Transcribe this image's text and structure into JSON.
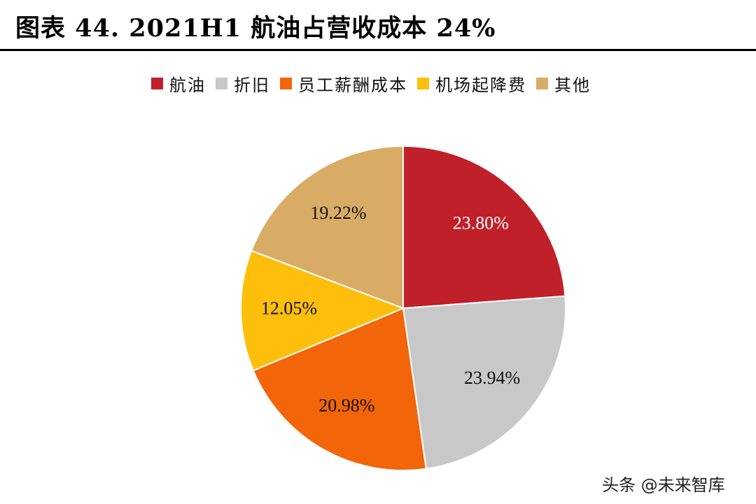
{
  "chart_data": {
    "type": "pie",
    "title": "图表 44. 2021H1 航油占营收成本 24%",
    "legend_position": "top",
    "start": "12 o'clock",
    "direction": "clockwise",
    "slices": [
      {
        "name": "航油",
        "value": 23.8,
        "label": "23.80%",
        "color": "#C0202A",
        "label_color": "#ffffff"
      },
      {
        "name": "折旧",
        "value": 23.94,
        "label": "23.94%",
        "color": "#C8C8C8",
        "label_color": "#111111"
      },
      {
        "name": "员工薪酬成本",
        "value": 20.98,
        "label": "20.98%",
        "color": "#F36509",
        "label_color": "#111111"
      },
      {
        "name": "机场起降费",
        "value": 12.05,
        "label": "12.05%",
        "color": "#FEBE0C",
        "label_color": "#111111"
      },
      {
        "name": "其他",
        "value": 19.22,
        "label": "19.22%",
        "color": "#D9AC66",
        "label_color": "#111111"
      }
    ]
  },
  "watermark": "头条 @未来智库"
}
